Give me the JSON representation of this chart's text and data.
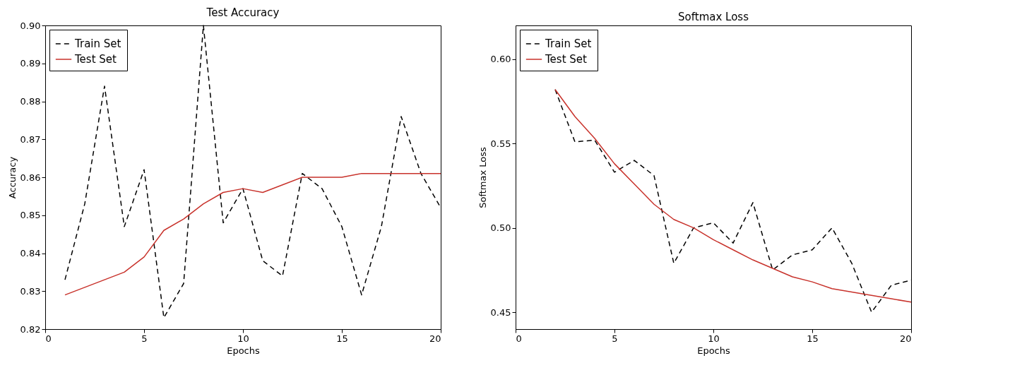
{
  "chart_data": [
    {
      "type": "line",
      "title": "Test Accuracy",
      "xlabel": "Epochs",
      "ylabel": "Accuracy",
      "xlim": [
        0,
        20
      ],
      "xticks": [
        0,
        5,
        10,
        15,
        20
      ],
      "ylim": [
        0.82,
        0.9
      ],
      "yticks": [
        0.82,
        0.83,
        0.84,
        0.85,
        0.86,
        0.87,
        0.88,
        0.89,
        {
          "value": 0.9,
          "label": "0.90"
        }
      ],
      "grid": false,
      "legend": "top left",
      "marker": "none",
      "x": [
        1,
        2,
        3,
        4,
        5,
        6,
        7,
        8,
        9,
        10,
        11,
        12,
        13,
        14,
        15,
        16,
        17,
        18,
        19,
        20
      ],
      "series": [
        {
          "name": "Train Set",
          "color": "#000000",
          "line_style": "dashed",
          "values": [
            0.833,
            0.853,
            0.884,
            0.847,
            0.862,
            0.823,
            0.832,
            0.9,
            0.848,
            0.857,
            0.838,
            0.834,
            0.861,
            0.857,
            0.847,
            0.829,
            0.847,
            0.876,
            0.861,
            0.852
          ]
        },
        {
          "name": "Test Set",
          "color": "#c8322b",
          "line_style": "solid",
          "values": [
            0.829,
            0.831,
            0.833,
            0.835,
            0.839,
            0.846,
            0.849,
            0.853,
            0.856,
            0.857,
            0.856,
            0.858,
            0.86,
            0.86,
            0.86,
            0.861,
            0.861,
            0.861,
            0.861,
            0.861
          ]
        }
      ]
    },
    {
      "type": "line",
      "title": "Softmax Loss",
      "xlabel": "Epochs",
      "ylabel": "Softmax Loss",
      "xlim": [
        0,
        20
      ],
      "xticks": [
        0,
        5,
        10,
        15,
        20
      ],
      "ylim": [
        0.44,
        0.62
      ],
      "yticks": [
        0.45,
        {
          "value": 0.5,
          "label": "0.50"
        },
        0.55,
        {
          "value": 0.6,
          "label": "0.60"
        }
      ],
      "grid": false,
      "legend": "top left",
      "marker": "none",
      "x": [
        2,
        3,
        4,
        5,
        6,
        7,
        8,
        9,
        10,
        11,
        12,
        13,
        14,
        15,
        16,
        17,
        18,
        19,
        20
      ],
      "series": [
        {
          "name": "Train Set",
          "color": "#000000",
          "line_style": "dashed",
          "values": [
            0.582,
            0.551,
            0.552,
            0.533,
            0.54,
            0.531,
            0.479,
            0.5,
            0.503,
            0.491,
            0.515,
            0.475,
            0.484,
            0.487,
            0.5,
            0.479,
            0.45,
            0.466,
            0.469
          ]
        },
        {
          "name": "Test Set",
          "color": "#c8322b",
          "line_style": "solid",
          "values": [
            0.582,
            0.566,
            0.553,
            0.538,
            0.526,
            0.514,
            0.505,
            0.5,
            0.493,
            0.487,
            0.481,
            0.476,
            0.471,
            0.468,
            0.464,
            0.462,
            0.46,
            0.458,
            0.456
          ]
        }
      ]
    }
  ]
}
